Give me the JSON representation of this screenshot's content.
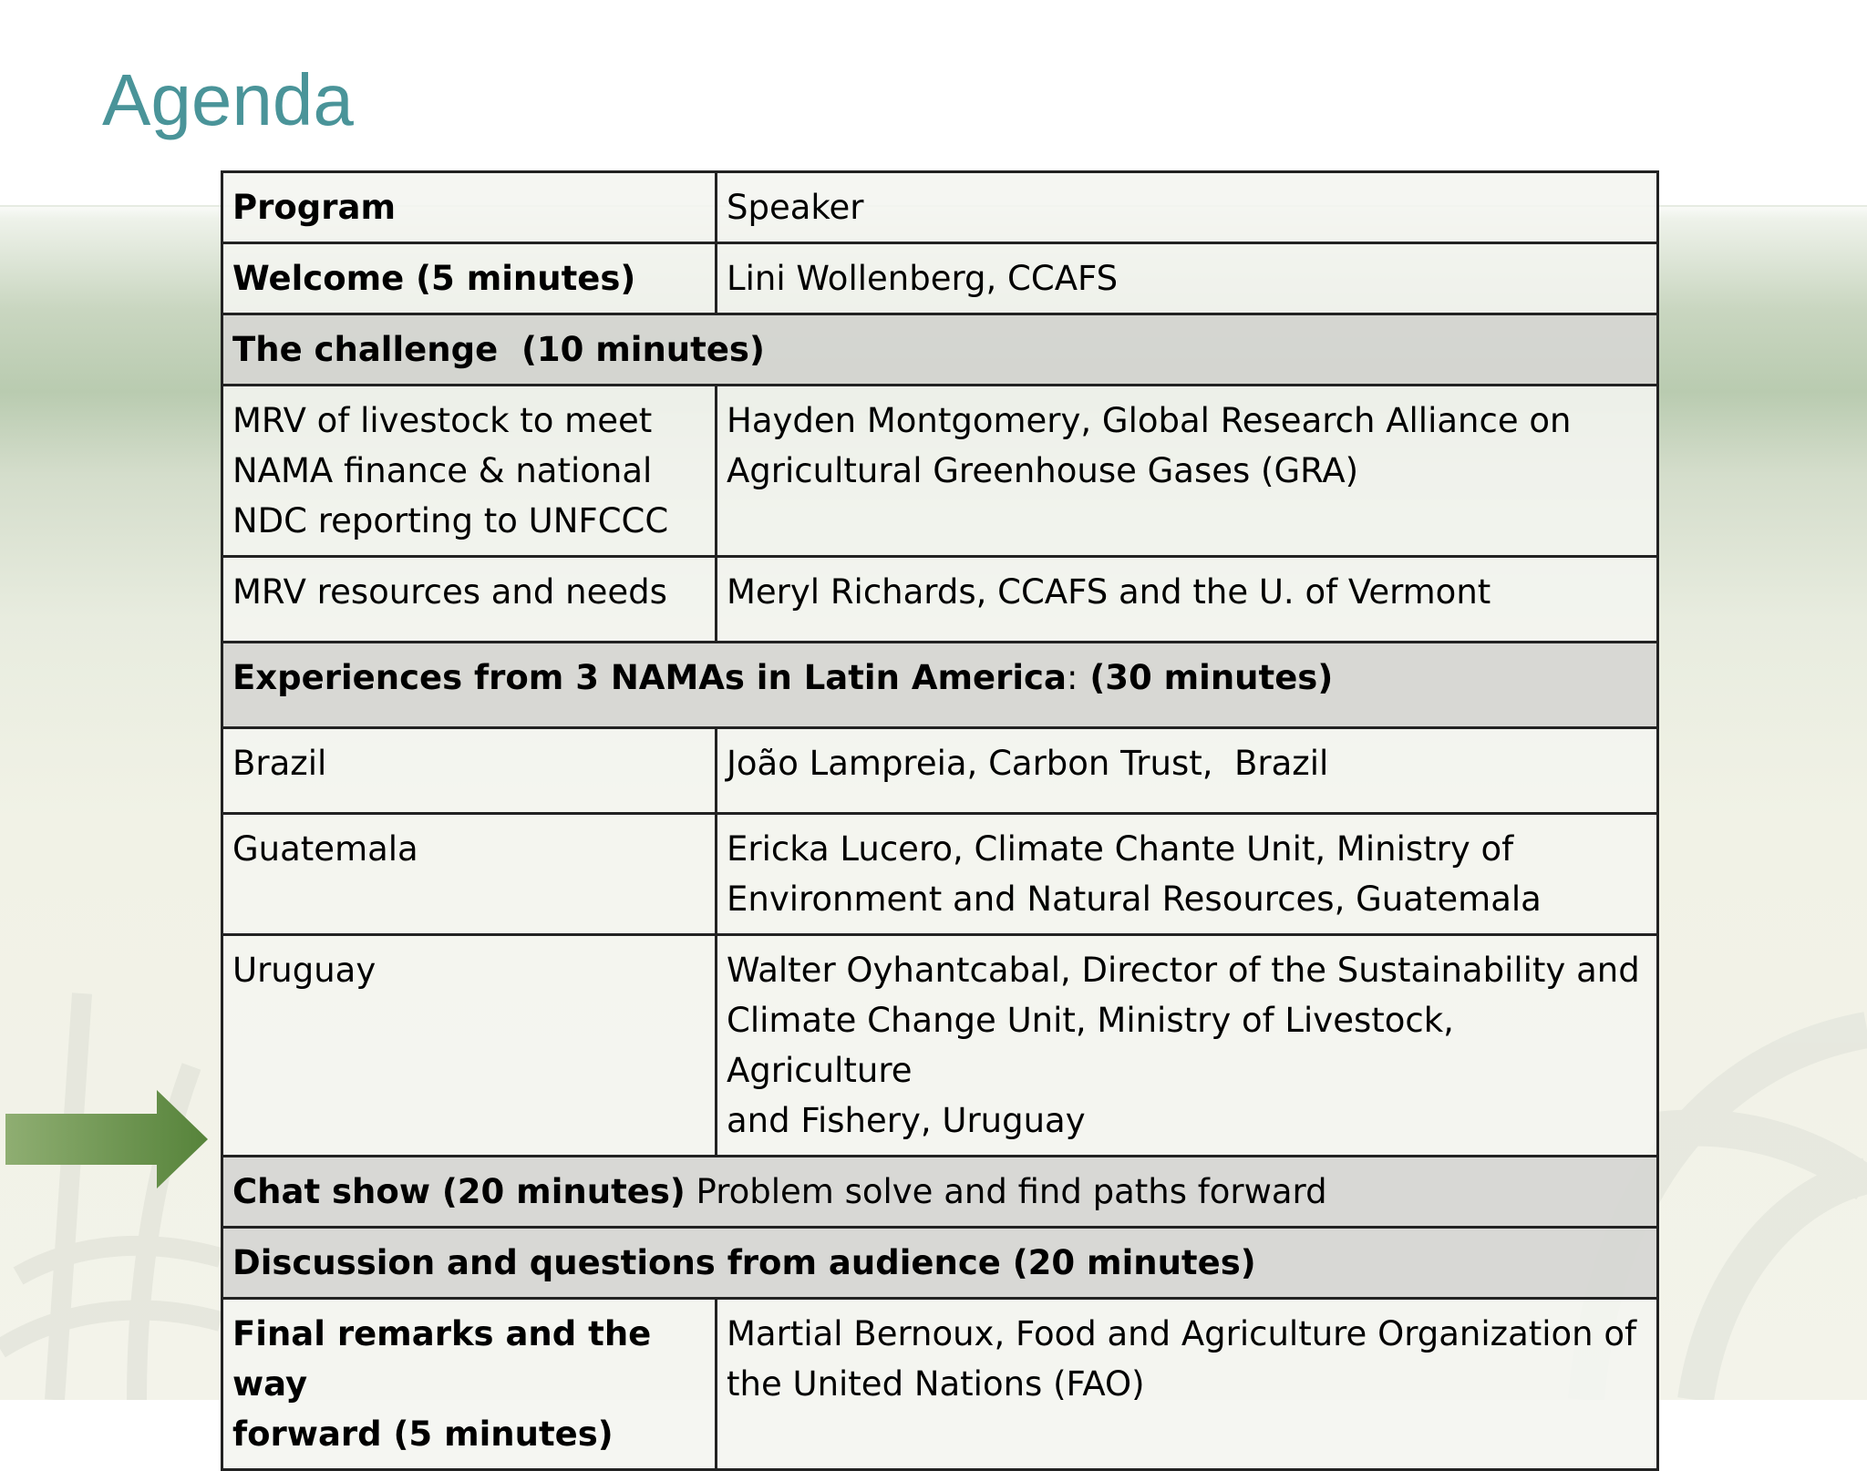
{
  "slide": {
    "title": "Agenda"
  },
  "agenda": {
    "header": {
      "program": "Program",
      "speaker": "Speaker"
    },
    "welcome": {
      "program": "Welcome (5 minutes)",
      "speaker": "Lini Wollenberg, CCAFS"
    },
    "section_challenge": {
      "label": "The challenge  (10 minutes)"
    },
    "mrv_livestock": {
      "program_lines": [
        "MRV of livestock to meet",
        "NAMA finance & national",
        "NDC reporting to UNFCCC"
      ],
      "speaker_lines": [
        "Hayden Montgomery, Global Research Alliance on",
        "Agricultural Greenhouse Gases (GRA)"
      ]
    },
    "mrv_resources": {
      "program": "MRV resources and needs",
      "speaker": "Meryl Richards, CCAFS and the U. of Vermont"
    },
    "section_experiences": {
      "label_bold_a": "Experiences from 3 NAMAs in Latin America",
      "colon": ":",
      "label_bold_b": " (30 minutes)"
    },
    "brazil": {
      "program": "Brazil",
      "speaker": "João Lampreia, Carbon Trust,  Brazil"
    },
    "guatemala": {
      "program": "Guatemala",
      "speaker_lines": [
        "Ericka Lucero, Climate Chante Unit, Ministry of",
        "Environment and Natural Resources, Guatemala"
      ]
    },
    "uruguay": {
      "program": "Uruguay",
      "speaker_lines": [
        "Walter Oyhantcabal, Director of the Sustainability and",
        "Climate Change Unit, Ministry of Livestock, Agriculture",
        "and Fishery, Uruguay"
      ]
    },
    "chat_show": {
      "bold": "Chat show (20 minutes)",
      "rest": " Problem solve and find paths forward"
    },
    "discussion": {
      "label": "Discussion and questions from audience (20 minutes)"
    },
    "final": {
      "program_lines": [
        "Final remarks and the way",
        "forward (5 minutes)"
      ],
      "speaker_lines": [
        "Martial Bernoux, Food and Agriculture Organization of",
        "the United Nations (FAO)"
      ]
    }
  },
  "colors": {
    "title": "#4a9499",
    "arrow": "#5b8a3a",
    "shaded_row": "#d6d6d2",
    "border": "#222222"
  }
}
